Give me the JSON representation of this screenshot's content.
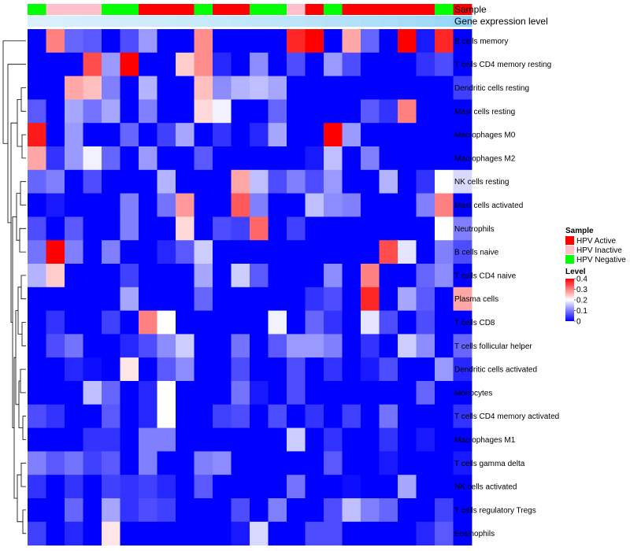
{
  "chart_data": {
    "type": "heatmap",
    "legend": {
      "position": "right",
      "sample_title": "Sample",
      "sample_entries": [
        {
          "label": "HPV Active",
          "color": "#ff0000"
        },
        {
          "label": "HPV Inactive",
          "color": "#ffc0cb"
        },
        {
          "label": "HPV Negative",
          "color": "#00ff00"
        }
      ],
      "level_title": "Level",
      "level_ticks": [
        {
          "value": 0.4,
          "label": "0.4"
        },
        {
          "value": 0.3,
          "label": "0.3"
        },
        {
          "value": 0.2,
          "label": "0.2"
        },
        {
          "value": 0.1,
          "label": "0.1"
        },
        {
          "value": 0,
          "label": "0"
        }
      ]
    },
    "annotations": {
      "sample_label": "Sample",
      "expression_label": "Gene expression level",
      "sample_row": [
        "HPV Negative",
        "HPV Inactive",
        "HPV Inactive",
        "HPV Inactive",
        "HPV Negative",
        "HPV Negative",
        "HPV Active",
        "HPV Active",
        "HPV Active",
        "HPV Negative",
        "HPV Active",
        "HPV Active",
        "HPV Negative",
        "HPV Negative",
        "HPV Inactive",
        "HPV Active",
        "HPV Negative",
        "HPV Active",
        "HPV Active",
        "HPV Active",
        "HPV Active",
        "HPV Active",
        "HPV Negative",
        "HPV Active"
      ],
      "expression_row": [
        0.05,
        0.06,
        0.08,
        0.09,
        0.11,
        0.13,
        0.15,
        0.17,
        0.19,
        0.21,
        0.23,
        0.25,
        0.27,
        0.29,
        0.31,
        0.33,
        0.36,
        0.39,
        0.42,
        0.46,
        0.5,
        0.55,
        0.6,
        0.7
      ]
    },
    "color_scale": {
      "min": 0,
      "mid": 0.2,
      "max": 0.4,
      "low": "#0000ff",
      "midcolor": "#ffffff",
      "high": "#ff0000"
    },
    "rows": [
      "B cells memory",
      "T cells CD4 memory resting",
      "Dendritic cells resting",
      "Mast cells resting",
      "Macrophages M0",
      "Macrophages M2",
      "NK cells resting",
      "Mast cells activated",
      "Neutrophils",
      "B cells naive",
      "T cells CD4 naive",
      "Plasma cells",
      "T cells CD8",
      "T cells follicular helper",
      "Dendritic cells activated",
      "Monocytes",
      "T cells CD4 memory activated",
      "Macrophages M1",
      "T cells gamma delta",
      "NK cells activated",
      "T cells regulatory  Tregs",
      "Eosinophils"
    ],
    "values": [
      [
        0,
        0.3,
        0.08,
        0.07,
        0,
        0.06,
        0.12,
        0,
        0,
        0.29,
        0,
        0,
        0,
        0,
        0.37,
        0.4,
        0,
        0.27,
        0.08,
        0,
        0.4,
        0.02,
        0.37,
        0
      ],
      [
        0,
        0,
        0,
        0.34,
        0.12,
        0.4,
        0,
        0,
        0.24,
        0.29,
        0.03,
        0,
        0.11,
        0,
        0.06,
        0,
        0.12,
        0.06,
        0,
        0,
        0,
        0.04,
        0.06,
        0
      ],
      [
        0,
        0,
        0.27,
        0.25,
        0.1,
        0,
        0.14,
        0,
        0,
        0.25,
        0.11,
        0.14,
        0.15,
        0.13,
        0,
        0,
        0,
        0,
        0,
        0,
        0,
        0,
        0,
        0.05
      ],
      [
        0.07,
        0,
        0.13,
        0.09,
        0.13,
        0,
        0.1,
        0,
        0,
        0.23,
        0.19,
        0,
        0,
        0.08,
        0,
        0,
        0,
        0,
        0.07,
        0.04,
        0.3,
        0,
        0,
        0
      ],
      [
        0.38,
        0,
        0.12,
        0,
        0,
        0.08,
        0,
        0.05,
        0.13,
        0,
        0.04,
        0,
        0.03,
        0.13,
        0,
        0,
        0.4,
        0.12,
        0,
        0,
        0,
        0,
        0,
        0
      ],
      [
        0.27,
        0.04,
        0.12,
        0.19,
        0.08,
        0,
        0.12,
        0,
        0,
        0.07,
        0,
        0,
        0,
        0,
        0,
        0.02,
        0.15,
        0,
        0.1,
        0,
        0,
        0,
        0,
        0
      ],
      [
        0.08,
        0.1,
        0,
        0.06,
        0,
        0,
        0,
        0.14,
        0,
        0,
        0,
        0.27,
        0.15,
        0.06,
        0.1,
        0.06,
        0.12,
        0,
        0,
        0.14,
        0,
        0.04,
        0.2,
        0.17
      ],
      [
        0,
        0.02,
        0,
        0,
        0,
        0.1,
        0,
        0.09,
        0.28,
        0,
        0,
        0.33,
        0.1,
        0,
        0,
        0.15,
        0.11,
        0.1,
        0,
        0,
        0,
        0.1,
        0.3,
        0
      ],
      [
        0.06,
        0,
        0.07,
        0,
        0,
        0.1,
        0,
        0,
        0.23,
        0,
        0.06,
        0.05,
        0.32,
        0,
        0.05,
        0,
        0,
        0,
        0,
        0,
        0,
        0,
        0.2,
        0.1
      ],
      [
        0.09,
        0.4,
        0.1,
        0,
        0.1,
        0,
        0,
        0.03,
        0.07,
        0.16,
        0,
        0,
        0,
        0,
        0,
        0,
        0,
        0,
        0,
        0.34,
        0.18,
        0,
        0.1,
        0.06
      ],
      [
        0.14,
        0.24,
        0,
        0,
        0,
        0.05,
        0,
        0,
        0,
        0.13,
        0,
        0.16,
        0.07,
        0,
        0,
        0,
        0.11,
        0,
        0.3,
        0,
        0,
        0.08,
        0.11,
        0
      ],
      [
        0,
        0,
        0,
        0,
        0,
        0.13,
        0,
        0,
        0,
        0.08,
        0,
        0,
        0,
        0,
        0,
        0.04,
        0.06,
        0,
        0.37,
        0,
        0.13,
        0.07,
        0,
        0.27
      ],
      [
        0,
        0.04,
        0,
        0,
        0.05,
        0,
        0.3,
        0.2,
        0,
        0,
        0,
        0,
        0,
        0.19,
        0,
        0.08,
        0.04,
        0,
        0.18,
        0.06,
        0,
        0.06,
        0,
        0
      ],
      [
        0,
        0.06,
        0.09,
        0,
        0,
        0.03,
        0.06,
        0.11,
        0.16,
        0,
        0,
        0.09,
        0,
        0.07,
        0.12,
        0.12,
        0.1,
        0,
        0.04,
        0,
        0.16,
        0.11,
        0,
        0.08
      ],
      [
        0,
        0,
        0.03,
        0.01,
        0,
        0.22,
        0,
        0.07,
        0.11,
        0,
        0,
        0.06,
        0,
        0,
        0.06,
        0,
        0.04,
        0,
        0.02,
        0.06,
        0,
        0,
        0.12,
        0.03
      ],
      [
        0,
        0,
        0,
        0.15,
        0.08,
        0,
        0.03,
        0.2,
        0,
        0,
        0,
        0.09,
        0.02,
        0,
        0.06,
        0,
        0,
        0,
        0,
        0,
        0,
        0.08,
        0,
        0
      ],
      [
        0.06,
        0.04,
        0,
        0,
        0.07,
        0,
        0.03,
        0.2,
        0,
        0,
        0.05,
        0.06,
        0,
        0.06,
        0,
        0.04,
        0,
        0.05,
        0,
        0.09,
        0,
        0,
        0,
        0.04
      ],
      [
        0,
        0,
        0,
        0.04,
        0.04,
        0,
        0.1,
        0.1,
        0,
        0,
        0,
        0,
        0,
        0,
        0.16,
        0,
        0.04,
        0,
        0,
        0.04,
        0,
        0.02,
        0,
        0
      ],
      [
        0.1,
        0.07,
        0.09,
        0.05,
        0.07,
        0,
        0.1,
        0,
        0,
        0.1,
        0.11,
        0,
        0,
        0,
        0,
        0,
        0.07,
        0,
        0,
        0.02,
        0,
        0,
        0,
        0.02
      ],
      [
        0.04,
        0,
        0.04,
        0,
        0.05,
        0.04,
        0.05,
        0.03,
        0,
        0.07,
        0,
        0,
        0,
        0,
        0.09,
        0,
        0,
        0.01,
        0,
        0,
        0.13,
        0,
        0,
        0
      ],
      [
        0,
        0,
        0.08,
        0,
        0.13,
        0.04,
        0.06,
        0.05,
        0,
        0,
        0,
        0.06,
        0,
        0.1,
        0,
        0,
        0.06,
        0.15,
        0.1,
        0.08,
        0,
        0,
        0.05,
        0
      ],
      [
        0.05,
        0,
        0.03,
        0,
        0.22,
        0,
        0,
        0,
        0,
        0,
        0,
        0.02,
        0.17,
        0,
        0,
        0.06,
        0.06,
        0,
        0,
        0,
        0,
        0.03,
        0.07,
        0
      ]
    ]
  }
}
